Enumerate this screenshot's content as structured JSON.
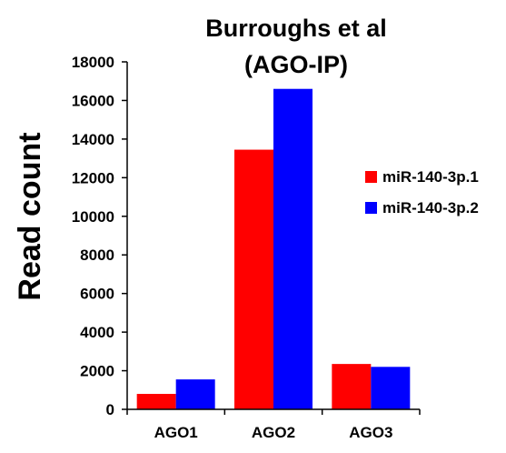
{
  "chart_data": {
    "type": "bar",
    "title_lines": [
      "Burroughs et al",
      "(AGO-IP)"
    ],
    "ylabel": "Read count",
    "xlabel": "",
    "categories": [
      "AGO1",
      "AGO2",
      "AGO3"
    ],
    "ylim": [
      0,
      18000
    ],
    "yticks": [
      0,
      2000,
      4000,
      6000,
      8000,
      10000,
      12000,
      14000,
      16000,
      18000
    ],
    "grid": false,
    "legend_position": "right",
    "series": [
      {
        "name": "miR-140-3p.1",
        "color": "#ff0000",
        "values": [
          800,
          13450,
          2350
        ]
      },
      {
        "name": "miR-140-3p.2",
        "color": "#0000ff",
        "values": [
          1550,
          16600,
          2200
        ]
      }
    ]
  }
}
